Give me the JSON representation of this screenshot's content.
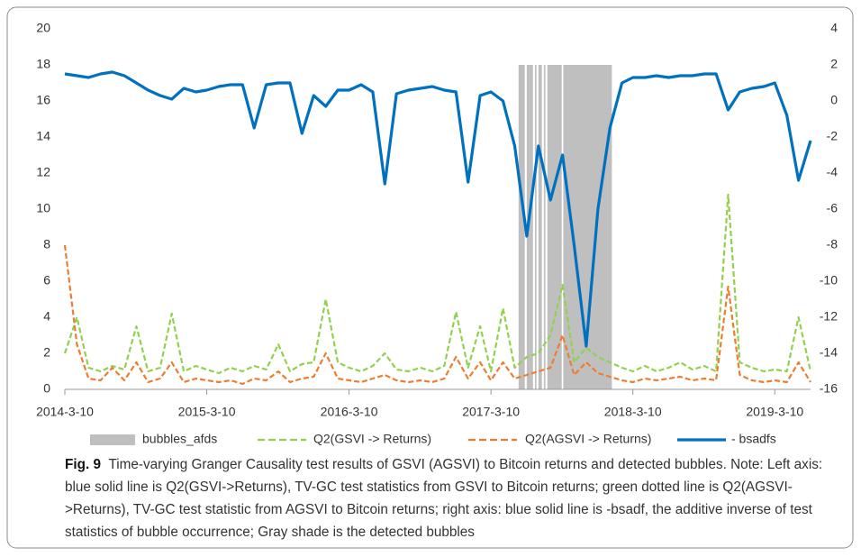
{
  "chart_data": {
    "type": "line",
    "caption_label": "Fig. 9",
    "caption": "Time-varying Granger Causality test results of GSVI (AGSVI) to Bitcoin returns and detected bubbles. Note: Left axis: blue solid line is Q2(GSVI->Returns), TV-GC test statistics from GSVI to Bitcoin returns; green dotted line is Q2(AGSVI->Returns), TV-GC test statistic from AGSVI to Bitcoin returns; right axis: blue solid line is -bsadf, the additive inverse of test statistics of bubble occurrence; Gray shade is the detected bubbles",
    "x": [
      "2014-3-10",
      "2014-4-10",
      "2014-5-10",
      "2014-6-10",
      "2014-7-10",
      "2014-8-10",
      "2014-9-10",
      "2014-10-10",
      "2014-11-10",
      "2014-12-10",
      "2015-1-10",
      "2015-2-10",
      "2015-3-10",
      "2015-4-10",
      "2015-5-10",
      "2015-6-10",
      "2015-7-10",
      "2015-8-10",
      "2015-9-10",
      "2015-10-10",
      "2015-11-10",
      "2015-12-10",
      "2016-1-10",
      "2016-2-10",
      "2016-3-10",
      "2016-4-10",
      "2016-5-10",
      "2016-6-10",
      "2016-7-10",
      "2016-8-10",
      "2016-9-10",
      "2016-10-10",
      "2016-11-10",
      "2016-12-10",
      "2017-1-10",
      "2017-2-10",
      "2017-3-10",
      "2017-4-10",
      "2017-5-10",
      "2017-6-10",
      "2017-7-10",
      "2017-8-10",
      "2017-9-10",
      "2017-10-10",
      "2017-11-10",
      "2017-12-10",
      "2018-1-10",
      "2018-2-10",
      "2018-3-10",
      "2018-4-10",
      "2018-5-10",
      "2018-6-10",
      "2018-7-10",
      "2018-8-10",
      "2018-9-10",
      "2018-10-10",
      "2018-11-10",
      "2018-12-10",
      "2019-1-10",
      "2019-2-10",
      "2019-3-10",
      "2019-4-10",
      "2019-5-10",
      "2019-6-10"
    ],
    "xlim": [
      "2014-3-10",
      "2019-6-10"
    ],
    "xticks": [
      "2014-3-10",
      "2015-3-10",
      "2016-3-10",
      "2017-3-10",
      "2018-3-10",
      "2019-3-10"
    ],
    "ylim": [
      0,
      20
    ],
    "yticks": [
      0,
      2,
      4,
      6,
      8,
      10,
      12,
      14,
      16,
      18,
      20
    ],
    "y2lim": [
      -16,
      4
    ],
    "y2ticks": [
      -16,
      -14,
      -12,
      -10,
      -8,
      -6,
      -4,
      -2,
      0,
      2,
      4
    ],
    "grid": false,
    "legend": "bottom",
    "bubbles": {
      "name": "bubbles_afds",
      "color": "#bfbfbf",
      "value": 18,
      "periods": [
        [
          "2017-5-20",
          "2017-6-5"
        ],
        [
          "2017-6-10",
          "2017-6-26"
        ],
        [
          "2017-7-1",
          "2017-7-5"
        ],
        [
          "2017-7-10",
          "2017-7-19"
        ],
        [
          "2017-7-24",
          "2017-7-28"
        ],
        [
          "2017-8-2",
          "2017-9-8"
        ],
        [
          "2017-9-12",
          "2018-1-15"
        ]
      ]
    },
    "series": [
      {
        "name": "Q2(GSVI -> Returns)",
        "color": "#92d050",
        "dash": true,
        "values": [
          2.0,
          4.0,
          1.2,
          1.0,
          1.3,
          1.1,
          3.5,
          1.0,
          1.2,
          4.2,
          1.0,
          1.3,
          1.1,
          0.9,
          1.2,
          1.0,
          1.3,
          1.1,
          2.5,
          1.0,
          1.4,
          1.5,
          5.0,
          1.5,
          1.2,
          1.0,
          1.3,
          2.0,
          1.1,
          1.0,
          1.2,
          1.0,
          1.3,
          4.3,
          1.2,
          3.5,
          1.0,
          4.5,
          1.2,
          1.8,
          2.0,
          3.0,
          5.8,
          1.5,
          2.3,
          1.8,
          1.5,
          1.2,
          1.0,
          1.3,
          1.0,
          1.2,
          1.5,
          1.1,
          1.3,
          1.0,
          10.8,
          1.5,
          1.2,
          1.0,
          1.1,
          1.0,
          4.0,
          1.0
        ]
      },
      {
        "name": "Q2(AGSVI -> Returns)",
        "color": "#ed7d31",
        "dash": true,
        "values": [
          8.0,
          2.5,
          0.6,
          0.5,
          1.2,
          0.5,
          1.5,
          0.4,
          0.6,
          1.5,
          0.4,
          0.6,
          0.5,
          0.4,
          0.5,
          0.3,
          0.6,
          0.5,
          1.0,
          0.4,
          0.6,
          0.7,
          2.0,
          0.6,
          0.5,
          0.4,
          0.6,
          0.8,
          0.5,
          0.4,
          0.5,
          0.4,
          0.6,
          1.8,
          0.6,
          1.5,
          0.5,
          1.5,
          0.6,
          0.8,
          1.0,
          1.2,
          3.0,
          0.8,
          1.5,
          0.9,
          0.7,
          0.5,
          0.4,
          0.6,
          0.5,
          0.6,
          0.7,
          0.5,
          0.6,
          0.5,
          5.7,
          0.8,
          0.5,
          0.4,
          0.5,
          0.4,
          1.5,
          0.4
        ]
      },
      {
        "name": "- bsadfs",
        "color": "#0070c0",
        "dash": false,
        "axis": "y2",
        "values": [
          1.5,
          1.4,
          1.3,
          1.5,
          1.6,
          1.4,
          1.0,
          0.6,
          0.3,
          0.1,
          0.7,
          0.5,
          0.6,
          0.8,
          0.9,
          0.9,
          -1.5,
          0.9,
          1.0,
          1.0,
          -1.8,
          0.3,
          -0.3,
          0.6,
          0.6,
          0.9,
          0.5,
          -4.6,
          0.4,
          0.6,
          0.7,
          0.8,
          0.6,
          0.5,
          -4.5,
          0.3,
          0.5,
          0.0,
          -2.5,
          -7.5,
          -2.5,
          -5.5,
          -3,
          -8,
          -13.6,
          -6,
          -1.5,
          1.0,
          1.3,
          1.3,
          1.4,
          1.3,
          1.4,
          1.4,
          1.5,
          1.5,
          -0.5,
          0.5,
          0.7,
          0.8,
          1.0,
          -0.8,
          -4.4,
          -2.2
        ]
      }
    ]
  }
}
